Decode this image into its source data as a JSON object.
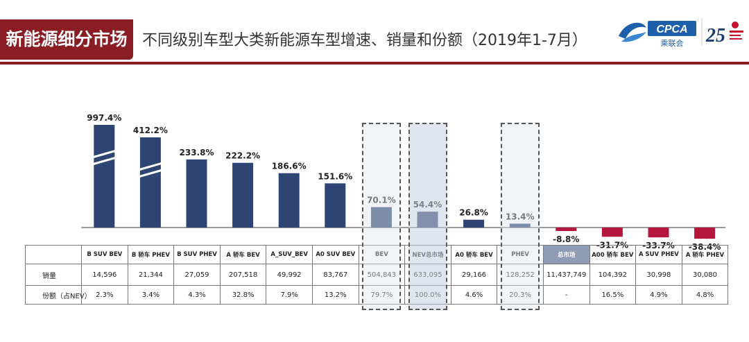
{
  "header": {
    "tag": "新能源细分市场",
    "title": "不同级别车型大类新能源车型增速、销量和份额（2019年1-7月）",
    "logo_text": "CPCA",
    "logo_sub": "乘联会",
    "logo_25": "25"
  },
  "chart_data": {
    "type": "bar",
    "categories": [
      "B SUV BEV",
      "B 轿车 PHEV",
      "B SUV PHEV",
      "A 轿车 BEV",
      "A_SUV_BEV",
      "A0 SUV BEV",
      "BEV",
      "NEV总市场",
      "A0 轿车 BEV",
      "PHEV",
      "总市场",
      "A00 轿车 BEV",
      "A SUV PHEV",
      "A 轿车 PHEV"
    ],
    "series": [
      {
        "values": [
          997.4,
          412.2,
          233.8,
          222.2,
          186.6,
          151.6,
          70.1,
          54.4,
          26.8,
          13.4,
          -8.8,
          -31.7,
          -33.7,
          -38.4
        ],
        "labels": [
          "997.4%",
          "412.2%",
          "233.8%",
          "222.2%",
          "186.6%",
          "151.6%",
          "70.1%",
          "54.4%",
          "26.8%",
          "13.4%",
          "-8.8%",
          "-31.7%",
          "-33.7%",
          "-38.4%"
        ]
      }
    ],
    "broken_axis_bars": [
      0,
      1
    ],
    "highlighted": [
      6,
      7,
      9
    ],
    "colors": {
      "positive": "#2e4473",
      "negative": "#b5173c",
      "tag": "#8a1c24",
      "market_cell": "#8e9cb6"
    },
    "table": {
      "rows": [
        {
          "label": "销量",
          "values": [
            "14,596",
            "21,344",
            "27,059",
            "207,518",
            "49,992",
            "83,767",
            "504,843",
            "633,095",
            "29,166",
            "128,252",
            "11,437,749",
            "104,392",
            "30,998",
            "30,080"
          ]
        },
        {
          "label": "份额（占NEV）",
          "values": [
            "2.3%",
            "3.4%",
            "4.3%",
            "32.8%",
            "7.9%",
            "13.2%",
            "79.7%",
            "100.0%",
            "4.6%",
            "20.3%",
            "-",
            "16.5%",
            "4.9%",
            "4.8%"
          ]
        }
      ]
    }
  }
}
